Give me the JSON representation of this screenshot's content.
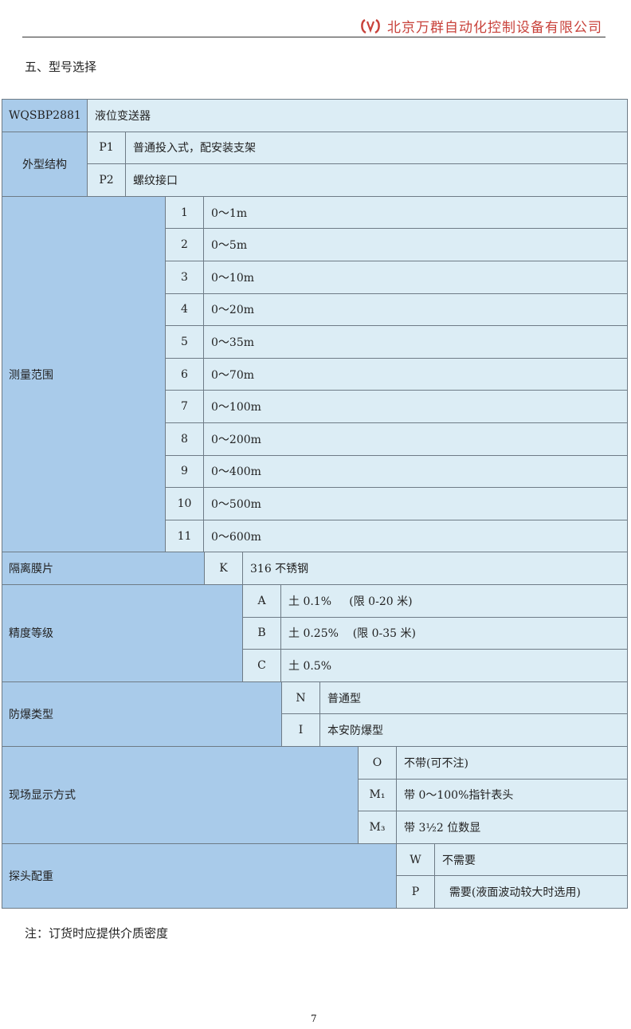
{
  "header": {
    "company": "北京万群自动化控制设备有限公司",
    "logo": "company-logo"
  },
  "section_title": "五、型号选择",
  "model": {
    "code": "WQSBP2881",
    "name": "液位变送器"
  },
  "groups": [
    {
      "label": "外型结构",
      "options": [
        {
          "code": "P1",
          "text": "普通投入式，配安装支架"
        },
        {
          "code": "P2",
          "text": "螺纹接口"
        }
      ]
    },
    {
      "label": "测量范围",
      "options": [
        {
          "code": "1",
          "text": "0～1m"
        },
        {
          "code": "2",
          "text": "0～5m"
        },
        {
          "code": "3",
          "text": "0～10m"
        },
        {
          "code": "4",
          "text": "0～20m"
        },
        {
          "code": "5",
          "text": "0～35m"
        },
        {
          "code": "6",
          "text": "0～70m"
        },
        {
          "code": "7",
          "text": "0～100m"
        },
        {
          "code": "8",
          "text": "0～200m"
        },
        {
          "code": "9",
          "text": "0～400m"
        },
        {
          "code": "10",
          "text": "0～500m"
        },
        {
          "code": "11",
          "text": "0～600m"
        }
      ]
    },
    {
      "label": "隔离膜片",
      "options": [
        {
          "code": "K",
          "text": "316 不锈钢"
        }
      ]
    },
    {
      "label": "精度等级",
      "options": [
        {
          "code": "A",
          "text": "土 0.1%     (限 0-20 米)"
        },
        {
          "code": "B",
          "text": "土 0.25%    (限 0-35 米)"
        },
        {
          "code": "C",
          "text": "土 0.5%"
        }
      ]
    },
    {
      "label": "防爆类型",
      "options": [
        {
          "code": "N",
          "text": "普通型"
        },
        {
          "code": "I",
          "text": "本安防爆型"
        }
      ]
    },
    {
      "label": "现场显示方式",
      "options": [
        {
          "code": "O",
          "text": "不带(可不注)"
        },
        {
          "code": "M₁",
          "text": "带 0～100%指针表头"
        },
        {
          "code": "M₃",
          "text": "带 3½2 位数显"
        }
      ]
    },
    {
      "label": "探头配重",
      "options": [
        {
          "code": "W",
          "text": "不需要"
        },
        {
          "code": "P",
          "text": "  需要(液面波动较大时选用)"
        }
      ]
    }
  ],
  "note": "注：订货时应提供介质密度",
  "page_number": "7"
}
